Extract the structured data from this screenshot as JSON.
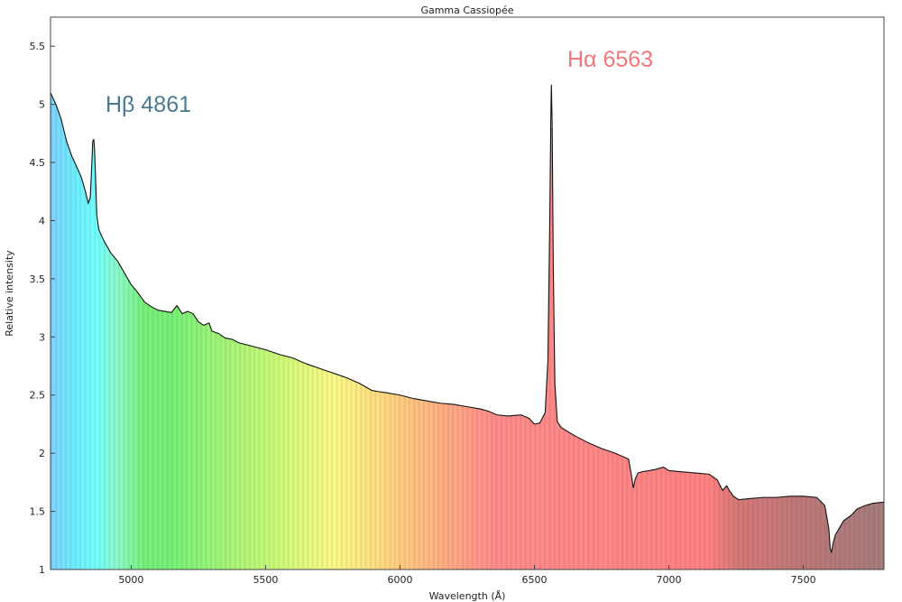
{
  "chart_data": {
    "type": "area",
    "title": "Gamma Cassiopée",
    "xlabel": "Wavelength (Å)",
    "ylabel": "Relative intensity",
    "xlim": [
      4700,
      7800
    ],
    "ylim": [
      1,
      5.75
    ],
    "grid": true,
    "fill": "visible-spectrum-gradient",
    "x_ticks": [
      5000,
      5500,
      6000,
      6500,
      7000,
      7500
    ],
    "y_ticks": [
      1,
      1.5,
      2,
      2.5,
      3,
      3.5,
      4,
      4.5,
      5,
      5.5
    ],
    "x_tick_labels": [
      "5000",
      "5500",
      "6000",
      "6500",
      "7000",
      "7500"
    ],
    "y_tick_labels": [
      "1",
      "1.5",
      "2",
      "2.5",
      "3",
      "3.5",
      "4",
      "4.5",
      "5",
      "5.5"
    ],
    "annotations": [
      {
        "text": "Hβ 4861",
        "x": 4861,
        "color": "#4a7a92"
      },
      {
        "text": "Hα 6563",
        "x": 6563,
        "color": "#f07878"
      }
    ],
    "series": [
      {
        "line_color": "#111111",
        "points": [
          [
            4700,
            5.1
          ],
          [
            4710,
            5.05
          ],
          [
            4720,
            5.0
          ],
          [
            4740,
            4.87
          ],
          [
            4760,
            4.68
          ],
          [
            4780,
            4.55
          ],
          [
            4800,
            4.45
          ],
          [
            4815,
            4.37
          ],
          [
            4830,
            4.25
          ],
          [
            4840,
            4.15
          ],
          [
            4848,
            4.2
          ],
          [
            4853,
            4.45
          ],
          [
            4857,
            4.68
          ],
          [
            4861,
            4.7
          ],
          [
            4864,
            4.6
          ],
          [
            4868,
            4.35
          ],
          [
            4872,
            4.05
          ],
          [
            4880,
            3.92
          ],
          [
            4900,
            3.82
          ],
          [
            4925,
            3.72
          ],
          [
            4950,
            3.65
          ],
          [
            4975,
            3.55
          ],
          [
            5000,
            3.45
          ],
          [
            5025,
            3.38
          ],
          [
            5050,
            3.3
          ],
          [
            5075,
            3.26
          ],
          [
            5100,
            3.23
          ],
          [
            5125,
            3.22
          ],
          [
            5150,
            3.21
          ],
          [
            5170,
            3.27
          ],
          [
            5190,
            3.2
          ],
          [
            5210,
            3.22
          ],
          [
            5230,
            3.2
          ],
          [
            5250,
            3.13
          ],
          [
            5270,
            3.1
          ],
          [
            5290,
            3.12
          ],
          [
            5300,
            3.05
          ],
          [
            5325,
            3.03
          ],
          [
            5350,
            2.99
          ],
          [
            5375,
            2.98
          ],
          [
            5400,
            2.95
          ],
          [
            5450,
            2.92
          ],
          [
            5500,
            2.89
          ],
          [
            5550,
            2.85
          ],
          [
            5600,
            2.82
          ],
          [
            5650,
            2.77
          ],
          [
            5700,
            2.73
          ],
          [
            5750,
            2.69
          ],
          [
            5800,
            2.65
          ],
          [
            5850,
            2.6
          ],
          [
            5880,
            2.56
          ],
          [
            5895,
            2.54
          ],
          [
            5920,
            2.53
          ],
          [
            5950,
            2.52
          ],
          [
            6000,
            2.5
          ],
          [
            6050,
            2.47
          ],
          [
            6100,
            2.45
          ],
          [
            6150,
            2.43
          ],
          [
            6200,
            2.42
          ],
          [
            6250,
            2.4
          ],
          [
            6300,
            2.38
          ],
          [
            6330,
            2.36
          ],
          [
            6360,
            2.33
          ],
          [
            6400,
            2.32
          ],
          [
            6450,
            2.33
          ],
          [
            6480,
            2.3
          ],
          [
            6500,
            2.25
          ],
          [
            6520,
            2.26
          ],
          [
            6540,
            2.35
          ],
          [
            6550,
            2.8
          ],
          [
            6557,
            4.0
          ],
          [
            6561,
            4.9
          ],
          [
            6563,
            5.17
          ],
          [
            6566,
            4.8
          ],
          [
            6570,
            3.6
          ],
          [
            6576,
            2.6
          ],
          [
            6585,
            2.27
          ],
          [
            6600,
            2.22
          ],
          [
            6650,
            2.15
          ],
          [
            6700,
            2.09
          ],
          [
            6750,
            2.04
          ],
          [
            6800,
            2.0
          ],
          [
            6850,
            1.95
          ],
          [
            6860,
            1.82
          ],
          [
            6868,
            1.7
          ],
          [
            6875,
            1.78
          ],
          [
            6885,
            1.83
          ],
          [
            6900,
            1.84
          ],
          [
            6950,
            1.86
          ],
          [
            6980,
            1.88
          ],
          [
            7000,
            1.85
          ],
          [
            7050,
            1.84
          ],
          [
            7100,
            1.83
          ],
          [
            7150,
            1.82
          ],
          [
            7180,
            1.77
          ],
          [
            7200,
            1.68
          ],
          [
            7215,
            1.72
          ],
          [
            7225,
            1.68
          ],
          [
            7240,
            1.63
          ],
          [
            7260,
            1.6
          ],
          [
            7300,
            1.61
          ],
          [
            7350,
            1.62
          ],
          [
            7400,
            1.62
          ],
          [
            7450,
            1.63
          ],
          [
            7500,
            1.63
          ],
          [
            7550,
            1.62
          ],
          [
            7580,
            1.55
          ],
          [
            7595,
            1.35
          ],
          [
            7600,
            1.18
          ],
          [
            7605,
            1.15
          ],
          [
            7612,
            1.24
          ],
          [
            7620,
            1.3
          ],
          [
            7635,
            1.36
          ],
          [
            7650,
            1.42
          ],
          [
            7680,
            1.47
          ],
          [
            7700,
            1.52
          ],
          [
            7730,
            1.55
          ],
          [
            7760,
            1.57
          ],
          [
            7800,
            1.58
          ]
        ]
      }
    ]
  }
}
